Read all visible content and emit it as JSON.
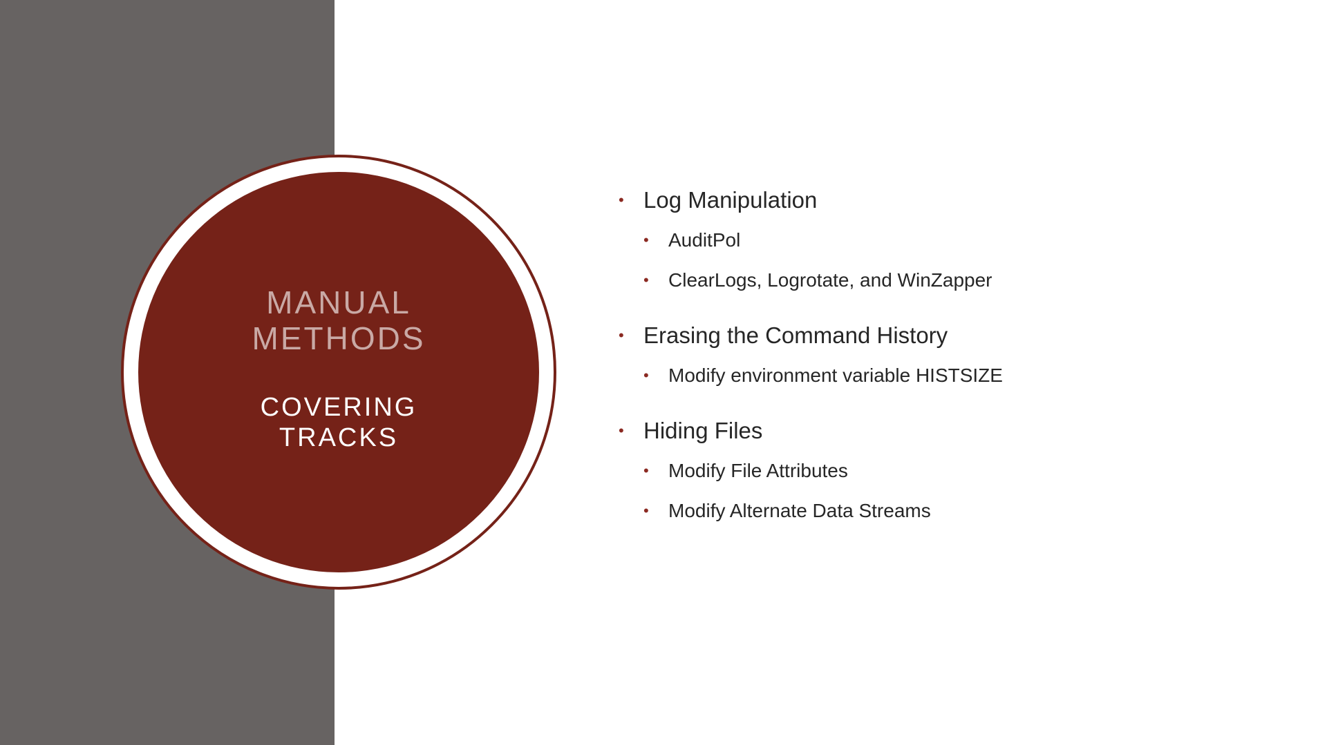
{
  "slide": {
    "title_main_line1": "MANUAL",
    "title_main_line2": "METHODS",
    "subtitle_line1": "COVERING",
    "subtitle_line2": "TRACKS"
  },
  "colors": {
    "left_panel": "#676362",
    "accent": "#752218",
    "title_text": "#c9a9a5",
    "bullet": "#8b2a22"
  },
  "bullets": [
    {
      "label": "Log Manipulation",
      "children": [
        "AuditPol",
        "ClearLogs, Logrotate, and WinZapper"
      ]
    },
    {
      "label": "Erasing the Command History",
      "children": [
        "Modify environment variable HISTSIZE"
      ]
    },
    {
      "label": "Hiding Files",
      "children": [
        "Modify File Attributes",
        "Modify Alternate Data Streams"
      ]
    }
  ]
}
